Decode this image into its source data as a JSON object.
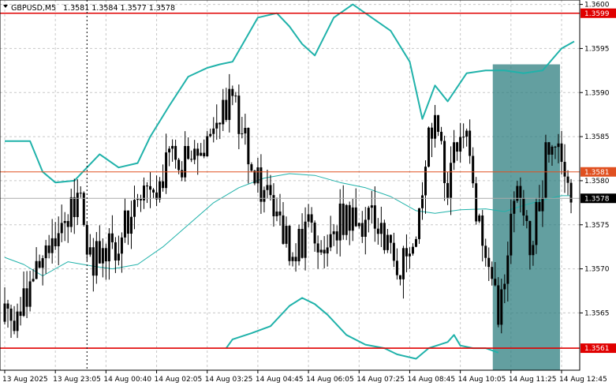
{
  "header": {
    "symbol_timeframe": "GBPUSD,M5",
    "ohlc": "1.3581 1.3584 1.3577 1.3578"
  },
  "chart_data": {
    "type": "candlestick",
    "title": "GBPUSD,M5",
    "ohlc_readout": {
      "open": 1.3581,
      "high": 1.3584,
      "low": 1.3577,
      "close": 1.3578
    },
    "ylim": [
      1.35585,
      1.36005
    ],
    "y_ticks": [
      "1.3600",
      "1.3595",
      "1.3590",
      "1.3585",
      "1.3580",
      "1.3575",
      "1.3570",
      "1.3565"
    ],
    "x_tick_labels": [
      "13 Aug 2025",
      "13 Aug 23:05",
      "14 Aug 00:40",
      "14 Aug 02:05",
      "14 Aug 03:25",
      "14 Aug 04:45",
      "14 Aug 06:05",
      "14 Aug 07:25",
      "14 Aug 08:45",
      "14 Aug 10:05",
      "14 Aug 11:25",
      "14 Aug 12:45"
    ],
    "x_tick_bars": [
      0,
      16,
      32,
      48,
      64,
      80,
      96,
      112,
      128,
      144,
      160,
      176
    ],
    "grid": true,
    "horizontal_levels": [
      {
        "price": 1.3599,
        "label": "1.3599",
        "color": "#e00000",
        "width": 1.6
      },
      {
        "price": 1.3581,
        "label": "1.3581",
        "color": "#e05020",
        "width": 1
      },
      {
        "price": 1.3561,
        "label": "1.3561",
        "color": "#e00000",
        "width": 1.6
      }
    ],
    "current_price": {
      "price": 1.3578,
      "label": "1.3578",
      "color": "#aaaaaa"
    },
    "vertical_marker_bar": 26,
    "highlight_zone": {
      "start_bar": 155,
      "end_bar": 176,
      "top_price": 1.35932,
      "bottom_price": 1.35585,
      "color": "#2f7f80"
    },
    "bollinger_upper": [
      [
        0,
        1.35845
      ],
      [
        8,
        1.35845
      ],
      [
        12,
        1.3581
      ],
      [
        16,
        1.35798
      ],
      [
        22,
        1.358
      ],
      [
        26,
        1.35815
      ],
      [
        30,
        1.3583
      ],
      [
        36,
        1.35815
      ],
      [
        42,
        1.3582
      ],
      [
        46,
        1.3585
      ],
      [
        52,
        1.35885
      ],
      [
        58,
        1.35918
      ],
      [
        64,
        1.35928
      ],
      [
        68,
        1.35932
      ],
      [
        72,
        1.35935
      ],
      [
        76,
        1.3596
      ],
      [
        80,
        1.35985
      ],
      [
        86,
        1.3599
      ],
      [
        90,
        1.35975
      ],
      [
        94,
        1.35955
      ],
      [
        98,
        1.35942
      ],
      [
        104,
        1.35985
      ],
      [
        110,
        1.36
      ],
      [
        116,
        1.35985
      ],
      [
        122,
        1.3597
      ],
      [
        128,
        1.35935
      ],
      [
        132,
        1.3587
      ],
      [
        136,
        1.35908
      ],
      [
        140,
        1.3589
      ],
      [
        146,
        1.35922
      ],
      [
        152,
        1.35925
      ],
      [
        158,
        1.35925
      ],
      [
        164,
        1.35922
      ],
      [
        170,
        1.35925
      ],
      [
        176,
        1.3595
      ],
      [
        180,
        1.35958
      ]
    ],
    "bollinger_lower": [
      [
        70,
        1.3561
      ],
      [
        72,
        1.3562
      ],
      [
        78,
        1.35627
      ],
      [
        84,
        1.35635
      ],
      [
        90,
        1.35658
      ],
      [
        94,
        1.35667
      ],
      [
        98,
        1.3566
      ],
      [
        102,
        1.35648
      ],
      [
        108,
        1.35625
      ],
      [
        114,
        1.35614
      ],
      [
        120,
        1.3561
      ],
      [
        124,
        1.35603
      ],
      [
        130,
        1.35598
      ],
      [
        134,
        1.3561
      ],
      [
        140,
        1.35617
      ],
      [
        142,
        1.35625
      ],
      [
        144,
        1.35613
      ],
      [
        148,
        1.3561
      ],
      [
        152,
        1.3561
      ],
      [
        156,
        1.35605
      ]
    ],
    "moving_average": [
      [
        0,
        1.35713
      ],
      [
        6,
        1.35705
      ],
      [
        12,
        1.35692
      ],
      [
        20,
        1.35708
      ],
      [
        28,
        1.35703
      ],
      [
        34,
        1.357
      ],
      [
        42,
        1.35705
      ],
      [
        50,
        1.35725
      ],
      [
        58,
        1.3575
      ],
      [
        66,
        1.35775
      ],
      [
        74,
        1.35792
      ],
      [
        82,
        1.35803
      ],
      [
        90,
        1.35808
      ],
      [
        98,
        1.35806
      ],
      [
        106,
        1.35798
      ],
      [
        114,
        1.35792
      ],
      [
        122,
        1.35782
      ],
      [
        130,
        1.35766
      ],
      [
        136,
        1.35763
      ],
      [
        144,
        1.35767
      ],
      [
        152,
        1.35768
      ],
      [
        158,
        1.35765
      ],
      [
        164,
        1.35772
      ],
      [
        170,
        1.35778
      ],
      [
        176,
        1.35783
      ],
      [
        179,
        1.35783
      ]
    ],
    "candle_path": [
      [
        0,
        1.3564
      ],
      [
        3,
        1.3565
      ],
      [
        7,
        1.3566
      ],
      [
        9,
        1.3569
      ],
      [
        12,
        1.3571
      ],
      [
        16,
        1.3574
      ],
      [
        19,
        1.3576
      ],
      [
        22,
        1.3578
      ],
      [
        24,
        1.3577
      ],
      [
        26,
        1.3572
      ],
      [
        28,
        1.3571
      ],
      [
        30,
        1.3572
      ],
      [
        33,
        1.3573
      ],
      [
        36,
        1.3573
      ],
      [
        39,
        1.3576
      ],
      [
        43,
        1.3577
      ],
      [
        46,
        1.3579
      ],
      [
        50,
        1.3581
      ],
      [
        54,
        1.3583
      ],
      [
        58,
        1.3582
      ],
      [
        61,
        1.3584
      ],
      [
        64,
        1.3584
      ],
      [
        67,
        1.3588
      ],
      [
        70,
        1.3589
      ],
      [
        73,
        1.3588
      ],
      [
        75,
        1.3586
      ],
      [
        78,
        1.358
      ],
      [
        81,
        1.3579
      ],
      [
        84,
        1.3577
      ],
      [
        87,
        1.3574
      ],
      [
        90,
        1.3573
      ],
      [
        93,
        1.3573
      ],
      [
        96,
        1.3574
      ],
      [
        99,
        1.3573
      ],
      [
        102,
        1.3572
      ],
      [
        105,
        1.3575
      ],
      [
        108,
        1.3576
      ],
      [
        111,
        1.3575
      ],
      [
        114,
        1.3576
      ],
      [
        117,
        1.3575
      ],
      [
        120,
        1.3574
      ],
      [
        123,
        1.3571
      ],
      [
        126,
        1.3571
      ],
      [
        129,
        1.3572
      ],
      [
        132,
        1.3579
      ],
      [
        134,
        1.3585
      ],
      [
        136,
        1.3588
      ],
      [
        138,
        1.3583
      ],
      [
        140,
        1.3579
      ],
      [
        142,
        1.3583
      ],
      [
        144,
        1.3587
      ],
      [
        146,
        1.3585
      ],
      [
        148,
        1.3578
      ],
      [
        150,
        1.3574
      ],
      [
        152,
        1.3572
      ],
      [
        154,
        1.3568
      ],
      [
        156,
        1.3564
      ],
      [
        158,
        1.3568
      ],
      [
        160,
        1.3574
      ],
      [
        162,
        1.3579
      ],
      [
        164,
        1.3578
      ],
      [
        166,
        1.3572
      ],
      [
        168,
        1.3577
      ],
      [
        170,
        1.358
      ],
      [
        172,
        1.3585
      ],
      [
        174,
        1.3586
      ],
      [
        176,
        1.3583
      ],
      [
        178,
        1.3581
      ],
      [
        179,
        1.3578
      ]
    ]
  }
}
